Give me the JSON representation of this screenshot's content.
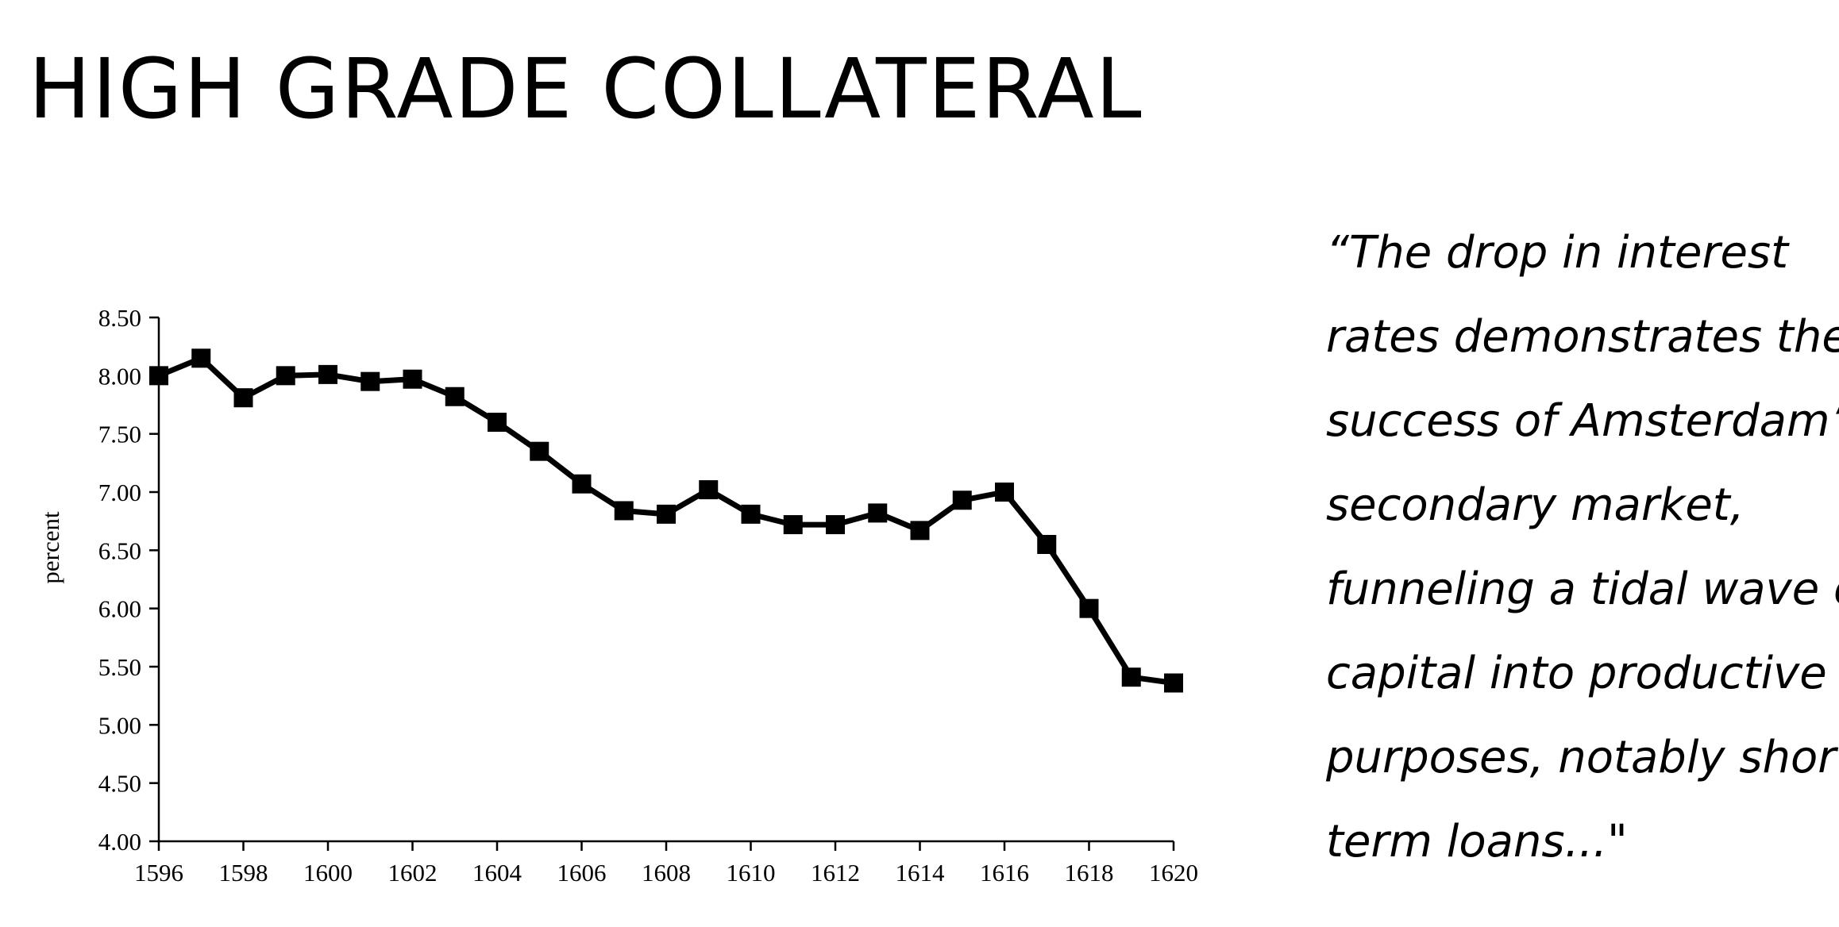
{
  "slide": {
    "title": "HIGH GRADE COLLATERAL"
  },
  "quote": {
    "lines": [
      "“The drop in interest",
      "rates demonstrates the",
      "success of Amsterdam’s",
      "secondary market,",
      "funneling a tidal wave of",
      "capital into productive",
      "purposes, notably short-",
      "term loans...\""
    ]
  },
  "chart_data": {
    "type": "line",
    "title": "",
    "xlabel": "",
    "ylabel": "percent",
    "x": [
      1596,
      1597,
      1598,
      1599,
      1600,
      1601,
      1602,
      1603,
      1604,
      1605,
      1606,
      1607,
      1608,
      1609,
      1610,
      1611,
      1612,
      1613,
      1614,
      1615,
      1616,
      1617,
      1618,
      1619,
      1620
    ],
    "series": [
      {
        "name": "",
        "values": [
          8.0,
          8.15,
          7.81,
          8.0,
          8.01,
          7.95,
          7.97,
          7.82,
          7.6,
          7.35,
          7.07,
          6.84,
          6.81,
          7.02,
          6.81,
          6.72,
          6.72,
          6.82,
          6.67,
          6.93,
          7.0,
          6.55,
          6.0,
          5.41,
          5.36
        ]
      }
    ],
    "xlim": [
      1596,
      1620
    ],
    "ylim": [
      4.0,
      8.5
    ],
    "xticks": [
      "1596",
      "1598",
      "1600",
      "1602",
      "1604",
      "1606",
      "1608",
      "1610",
      "1612",
      "1614",
      "1616",
      "1618",
      "1620"
    ],
    "yticks": [
      "4.00",
      "4.50",
      "5.00",
      "5.50",
      "6.00",
      "6.50",
      "7.00",
      "7.50",
      "8.00",
      "8.50"
    ],
    "grid": false,
    "legend": "none",
    "marker": "square",
    "line_color": "#000000",
    "axis_color": "#000000"
  }
}
